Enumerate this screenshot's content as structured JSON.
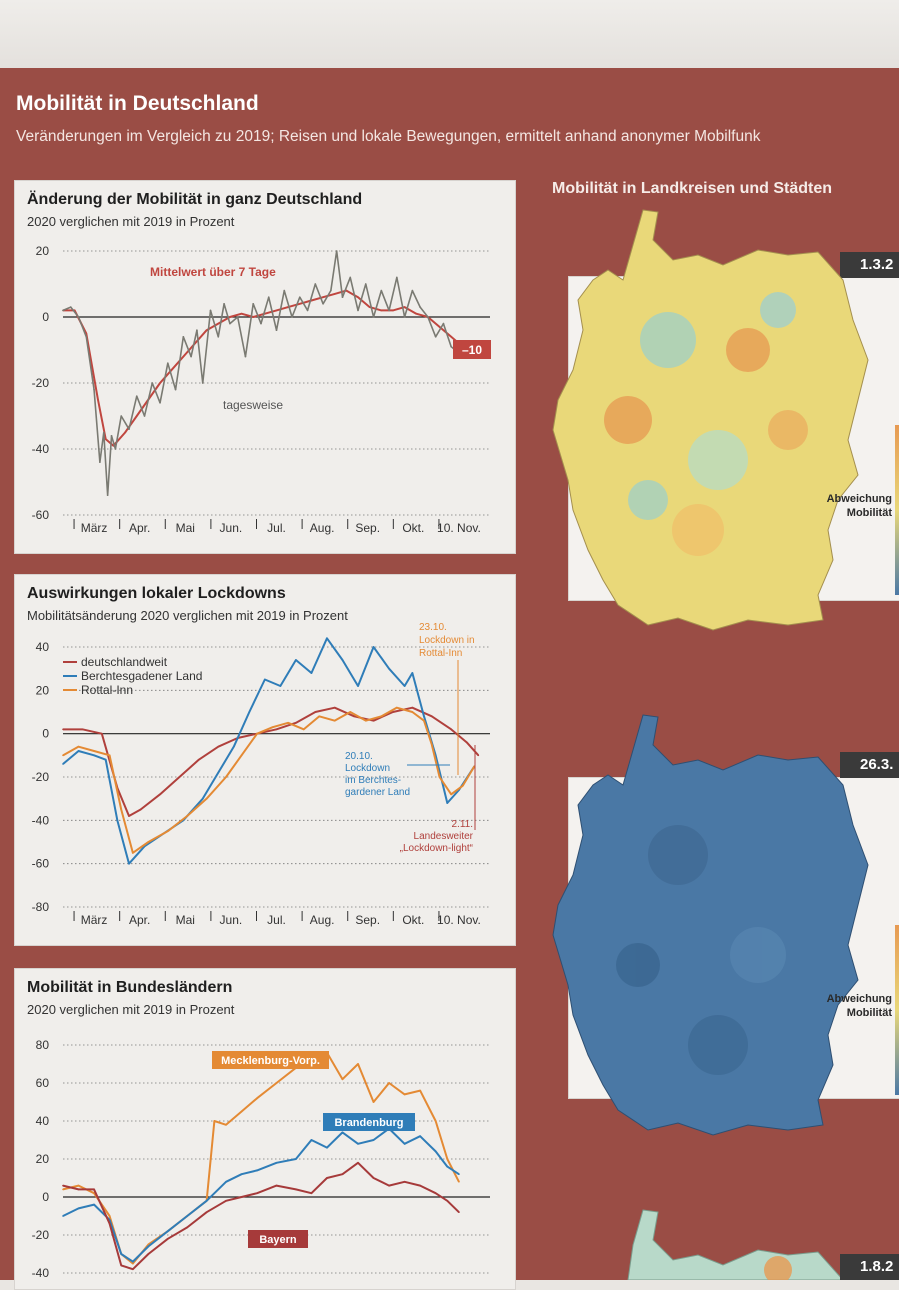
{
  "header": {
    "title": "Mobilität in Deutschland",
    "subtitle": "Veränderungen im Vergleich zu 2019; Reisen und lokale Bewegungen, ermittelt anhand anonymer Mobilfunk"
  },
  "maps": {
    "title": "Mobilität in Landkreisen und Städten",
    "legend_label_1": "Abweichung",
    "legend_label_2": "Mobilität",
    "dates": [
      "1.3.2",
      "26.3.",
      "1.8.2"
    ],
    "colors": [
      "#e9d879",
      "#4a78a5",
      "#b8d9c9"
    ]
  },
  "chart_data": [
    {
      "type": "line",
      "title": "Änderung der Mobilität in ganz Deutschland",
      "subtitle": "2020 verglichen mit 2019 in Prozent",
      "ylim": [
        -60,
        20
      ],
      "yticks": [
        20,
        0,
        -20,
        -40,
        -60
      ],
      "xlim": [
        0,
        11
      ],
      "xticks": [
        "März",
        "Apr.",
        "Mai",
        "Jun.",
        "Jul.",
        "Aug.",
        "Sep.",
        "Okt.",
        "10. Nov."
      ],
      "annotations": {
        "avg": "Mittelwert über 7 Tage",
        "daily": "tagesweise",
        "end_value": "–10"
      },
      "series": [
        {
          "name": "Mittelwert über 7 Tage",
          "color": "#c0463f",
          "x": [
            0,
            0.3,
            0.6,
            0.9,
            1.1,
            1.3,
            1.6,
            1.9,
            2.2,
            2.5,
            2.8,
            3.1,
            3.4,
            3.7,
            4.0,
            4.3,
            4.6,
            4.9,
            5.2,
            5.5,
            5.8,
            6.1,
            6.4,
            6.7,
            7.0,
            7.3,
            7.6,
            7.9,
            8.2,
            8.5,
            8.8,
            9.1,
            9.4,
            9.7,
            10.0,
            10.3,
            10.6
          ],
          "values": [
            2,
            2,
            -5,
            -25,
            -37,
            -39,
            -35,
            -30,
            -25,
            -20,
            -16,
            -12,
            -8,
            -4,
            -2,
            0,
            1,
            0,
            1,
            2,
            3,
            4,
            5,
            6,
            7,
            8,
            6,
            3,
            2,
            2,
            3,
            1,
            0,
            -3,
            -6,
            -9,
            -10
          ]
        },
        {
          "name": "tagesweise",
          "color": "#7a7a72",
          "x": [
            0,
            0.2,
            0.4,
            0.6,
            0.8,
            0.95,
            1.05,
            1.15,
            1.25,
            1.35,
            1.5,
            1.7,
            1.9,
            2.1,
            2.3,
            2.5,
            2.7,
            2.9,
            3.1,
            3.3,
            3.45,
            3.6,
            3.8,
            4.0,
            4.15,
            4.3,
            4.5,
            4.7,
            4.9,
            5.1,
            5.3,
            5.5,
            5.7,
            5.9,
            6.1,
            6.3,
            6.5,
            6.7,
            6.9,
            7.05,
            7.2,
            7.4,
            7.6,
            7.8,
            8.0,
            8.2,
            8.4,
            8.6,
            8.8,
            9.0,
            9.2,
            9.4,
            9.6,
            9.8,
            10.0,
            10.2,
            10.4,
            10.6
          ],
          "values": [
            2,
            3,
            0,
            -6,
            -22,
            -44,
            -35,
            -54,
            -36,
            -40,
            -30,
            -34,
            -24,
            -30,
            -20,
            -26,
            -14,
            -22,
            -6,
            -12,
            -4,
            -20,
            2,
            -6,
            4,
            -2,
            0,
            -12,
            4,
            -2,
            6,
            -4,
            8,
            0,
            6,
            2,
            10,
            4,
            8,
            20,
            6,
            12,
            2,
            10,
            0,
            8,
            2,
            12,
            0,
            8,
            3,
            0,
            -6,
            -2,
            -9,
            -11,
            -10,
            -10
          ]
        }
      ]
    },
    {
      "type": "line",
      "title": "Auswirkungen lokaler Lockdowns",
      "subtitle": "Mobilitätsänderung 2020 verglichen mit 2019 in Prozent",
      "ylim": [
        -80,
        40
      ],
      "yticks": [
        40,
        20,
        0,
        -20,
        -40,
        -60,
        -80
      ],
      "xlim": [
        0,
        11
      ],
      "xticks": [
        "März",
        "Apr.",
        "Mai",
        "Jun.",
        "Jul.",
        "Aug.",
        "Sep.",
        "Okt.",
        "10. Nov."
      ],
      "annotations": {
        "a1_1": "23.10.",
        "a1_2": "Lockdown in",
        "a1_3": "Rottal-Inn",
        "a2_1": "20.10.",
        "a2_2": "Lockdown",
        "a2_3": "im Berchtes-",
        "a2_4": "gardener Land",
        "a3_1": "2.11.",
        "a3_2": "Landesweiter",
        "a3_3": "„Lockdown-light“"
      },
      "series": [
        {
          "name": "deutschlandweit",
          "color": "#b0403c",
          "x": [
            0,
            0.5,
            1.0,
            1.4,
            1.7,
            2.0,
            2.5,
            3.0,
            3.5,
            4.0,
            4.5,
            5.0,
            5.5,
            6.0,
            6.5,
            7.0,
            7.5,
            8.0,
            8.5,
            9.0,
            9.5,
            10.0,
            10.4,
            10.7
          ],
          "values": [
            2,
            2,
            0,
            -25,
            -38,
            -35,
            -28,
            -20,
            -12,
            -6,
            -2,
            0,
            2,
            5,
            10,
            12,
            8,
            6,
            10,
            12,
            8,
            2,
            -4,
            -10
          ]
        },
        {
          "name": "Berchtesgadener Land",
          "color": "#2f7db8",
          "x": [
            0,
            0.4,
            0.8,
            1.1,
            1.4,
            1.7,
            2.1,
            2.6,
            3.1,
            3.6,
            4.0,
            4.4,
            4.8,
            5.2,
            5.6,
            6.0,
            6.4,
            6.8,
            7.2,
            7.6,
            8.0,
            8.4,
            8.8,
            9.0,
            9.3,
            9.6,
            9.9,
            10.2,
            10.6
          ],
          "values": [
            -14,
            -8,
            -10,
            -12,
            -40,
            -60,
            -52,
            -46,
            -40,
            -30,
            -18,
            -6,
            10,
            25,
            22,
            34,
            28,
            44,
            34,
            22,
            40,
            30,
            22,
            28,
            8,
            -10,
            -32,
            -26,
            -15
          ]
        },
        {
          "name": "Rottal-Inn",
          "color": "#e48a34",
          "x": [
            0,
            0.4,
            0.8,
            1.2,
            1.5,
            1.8,
            2.2,
            2.7,
            3.2,
            3.7,
            4.2,
            4.6,
            5.0,
            5.4,
            5.8,
            6.2,
            6.6,
            7.0,
            7.4,
            7.8,
            8.2,
            8.6,
            9.0,
            9.3,
            9.5,
            9.7,
            10.0,
            10.3,
            10.6
          ],
          "values": [
            -10,
            -6,
            -8,
            -10,
            -35,
            -55,
            -50,
            -45,
            -38,
            -30,
            -20,
            -10,
            0,
            3,
            5,
            2,
            8,
            6,
            10,
            6,
            8,
            12,
            10,
            6,
            -5,
            -20,
            -28,
            -24,
            -15
          ]
        }
      ]
    },
    {
      "type": "line",
      "title": "Mobilität in Bundesländern",
      "subtitle": "2020 verglichen mit 2019 in Prozent",
      "ylim": [
        -40,
        80
      ],
      "yticks": [
        80,
        60,
        40,
        20,
        0,
        -20,
        -40
      ],
      "xlim": [
        0,
        11
      ],
      "series": [
        {
          "name": "Mecklenburg-Vorp.",
          "color": "#e48a34",
          "x": [
            0,
            0.4,
            0.8,
            1.2,
            1.5,
            1.8,
            2.2,
            2.7,
            3.2,
            3.7,
            3.9,
            4.2,
            4.6,
            5.0,
            5.5,
            6.0,
            6.4,
            6.8,
            7.2,
            7.6,
            8.0,
            8.4,
            8.8,
            9.2,
            9.6,
            9.9,
            10.2
          ],
          "values": [
            4,
            6,
            2,
            -10,
            -30,
            -35,
            -25,
            -18,
            -10,
            -2,
            40,
            38,
            45,
            52,
            60,
            68,
            72,
            76,
            62,
            70,
            50,
            60,
            54,
            56,
            40,
            20,
            8
          ]
        },
        {
          "name": "Brandenburg",
          "color": "#2f7db8",
          "x": [
            0,
            0.4,
            0.8,
            1.2,
            1.5,
            1.8,
            2.2,
            2.7,
            3.2,
            3.7,
            4.2,
            4.6,
            5.0,
            5.5,
            6.0,
            6.4,
            6.8,
            7.2,
            7.6,
            8.0,
            8.4,
            8.8,
            9.2,
            9.6,
            9.9,
            10.2
          ],
          "values": [
            -10,
            -6,
            -4,
            -12,
            -30,
            -34,
            -26,
            -18,
            -10,
            -2,
            8,
            12,
            14,
            18,
            20,
            30,
            26,
            34,
            28,
            30,
            36,
            28,
            32,
            24,
            16,
            12
          ]
        },
        {
          "name": "Bayern",
          "color": "#a63a3a",
          "x": [
            0,
            0.4,
            0.8,
            1.2,
            1.5,
            1.8,
            2.2,
            2.7,
            3.2,
            3.7,
            4.2,
            4.6,
            5.0,
            5.5,
            6.0,
            6.4,
            6.8,
            7.2,
            7.6,
            8.0,
            8.4,
            8.8,
            9.2,
            9.6,
            9.9,
            10.2
          ],
          "values": [
            6,
            4,
            4,
            -14,
            -36,
            -38,
            -30,
            -22,
            -16,
            -8,
            -2,
            0,
            2,
            6,
            4,
            2,
            10,
            12,
            18,
            10,
            6,
            8,
            6,
            2,
            -2,
            -8
          ]
        }
      ]
    }
  ]
}
